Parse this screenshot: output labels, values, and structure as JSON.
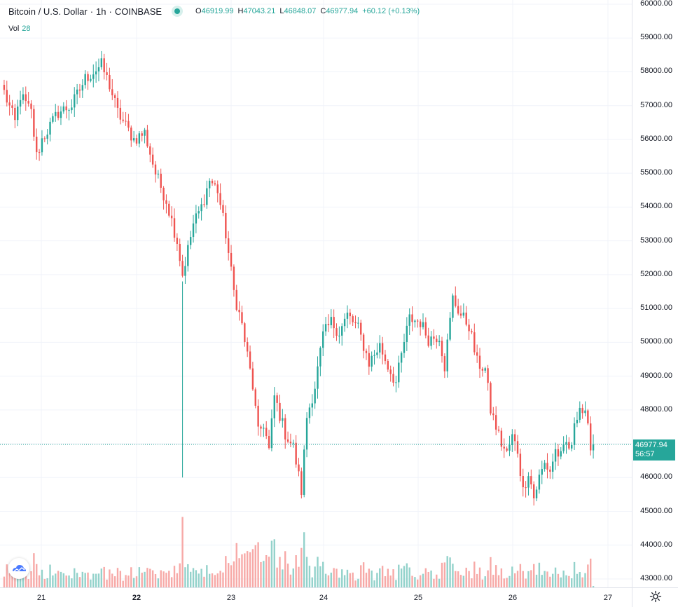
{
  "header": {
    "symbol": "Bitcoin / U.S. Dollar",
    "separator": "·",
    "interval": "1h",
    "exchange": "COINBASE",
    "status_color": "#26a69a",
    "ohlc": {
      "open_label": "O",
      "open": "46919.99",
      "high_label": "H",
      "high": "47043.21",
      "low_label": "L",
      "low": "46848.07",
      "close_label": "C",
      "close": "46977.94",
      "change": "+60.12 (+0.13%)"
    }
  },
  "volume_legend": {
    "label": "Vol",
    "value": "28"
  },
  "last_price": {
    "value": "46977.94",
    "countdown": "56:57",
    "color": "#26a69a"
  },
  "colors": {
    "up": "#26a69a",
    "down": "#ef5350",
    "up_volume": "#93d2cb",
    "down_volume": "#f7a9a7",
    "grid": "#f0f3fa"
  },
  "icons": {
    "logo": "tradingview-logo-icon",
    "settings": "gear-icon"
  },
  "chart_data": {
    "type": "candlestick",
    "interval": "1h",
    "y_axis": {
      "ticks": [
        "60000.00",
        "59000.00",
        "58000.00",
        "57000.00",
        "56000.00",
        "55000.00",
        "54000.00",
        "53000.00",
        "52000.00",
        "51000.00",
        "50000.00",
        "49000.00",
        "48000.00",
        "47000.00",
        "46000.00",
        "45000.00",
        "44000.00",
        "43000.00"
      ],
      "range": [
        42900,
        60100
      ]
    },
    "x_axis": {
      "ticks": [
        "21",
        "22",
        "23",
        "24",
        "25",
        "26",
        "27"
      ],
      "bold_ticks": [
        "22"
      ]
    },
    "grid": true,
    "close_keypoints": [
      [
        0,
        57400
      ],
      [
        4,
        56500
      ],
      [
        6,
        57300
      ],
      [
        10,
        56800
      ],
      [
        12,
        55500
      ],
      [
        14,
        56000
      ],
      [
        20,
        56800
      ],
      [
        25,
        57000
      ],
      [
        30,
        57800
      ],
      [
        36,
        58200
      ],
      [
        39,
        57600
      ],
      [
        42,
        56800
      ],
      [
        48,
        56000
      ],
      [
        52,
        56200
      ],
      [
        56,
        55000
      ],
      [
        60,
        54200
      ],
      [
        64,
        53000
      ],
      [
        66,
        52000
      ],
      [
        70,
        53500
      ],
      [
        73,
        54000
      ],
      [
        76,
        54800
      ],
      [
        79,
        54500
      ],
      [
        82,
        53200
      ],
      [
        85,
        51500
      ],
      [
        88,
        50500
      ],
      [
        90,
        49600
      ],
      [
        92,
        48700
      ],
      [
        94,
        47300
      ],
      [
        96,
        47600
      ],
      [
        98,
        46800
      ],
      [
        100,
        48400
      ],
      [
        104,
        47300
      ],
      [
        107,
        46900
      ],
      [
        110,
        45600
      ],
      [
        112,
        47800
      ],
      [
        115,
        48700
      ],
      [
        118,
        50200
      ],
      [
        121,
        50600
      ],
      [
        124,
        50300
      ],
      [
        127,
        50800
      ],
      [
        131,
        50400
      ],
      [
        135,
        49400
      ],
      [
        139,
        49900
      ],
      [
        142,
        49300
      ],
      [
        145,
        48800
      ],
      [
        148,
        50000
      ],
      [
        150,
        50700
      ],
      [
        154,
        50600
      ],
      [
        157,
        50100
      ],
      [
        161,
        50200
      ],
      [
        163,
        49300
      ],
      [
        166,
        51300
      ],
      [
        169,
        50800
      ],
      [
        172,
        50500
      ],
      [
        175,
        49400
      ],
      [
        178,
        49200
      ],
      [
        180,
        48000
      ],
      [
        182,
        47500
      ],
      [
        184,
        47000
      ],
      [
        186,
        46700
      ],
      [
        188,
        47200
      ],
      [
        190,
        46800
      ],
      [
        192,
        45600
      ],
      [
        194,
        46200
      ],
      [
        196,
        45400
      ],
      [
        198,
        46000
      ],
      [
        200,
        46400
      ],
      [
        202,
        46200
      ],
      [
        204,
        46800
      ],
      [
        206,
        46600
      ],
      [
        208,
        47000
      ],
      [
        210,
        46800
      ],
      [
        211,
        47700
      ],
      [
        213,
        48100
      ],
      [
        215,
        47800
      ],
      [
        216,
        47400
      ],
      [
        217,
        47000
      ],
      [
        218,
        46977.94
      ]
    ],
    "candle_count": 219,
    "last_close": 46977.94,
    "volume_range": [
      0,
      115
    ],
    "volume_spike": {
      "index": 66,
      "value": 105
    }
  }
}
